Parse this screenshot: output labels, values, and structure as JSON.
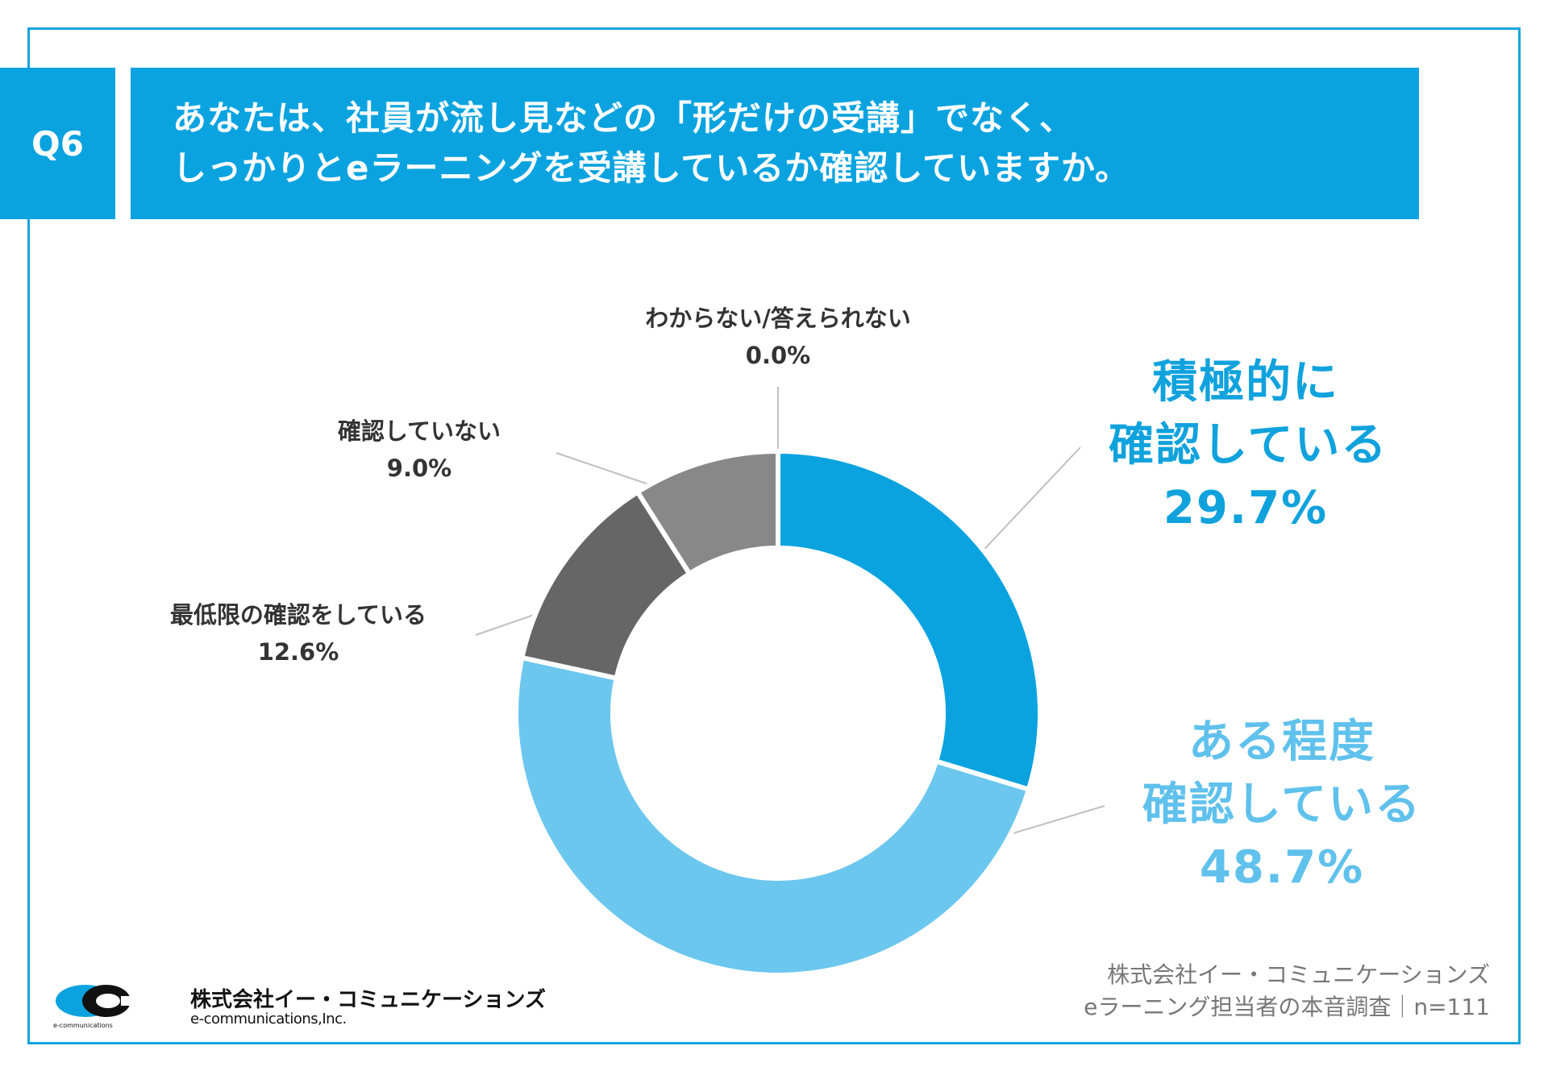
{
  "question": {
    "badge": "Q6",
    "line1": "あなたは、社員が流し見などの「形だけの受講」でなく、",
    "line2": "しっかりとeラーニングを受講しているか確認していますか。"
  },
  "chart_data": {
    "type": "pie",
    "donut": true,
    "start": "12 o'clock",
    "direction": "clockwise",
    "slices": [
      {
        "label_lines": [
          "積極的に",
          "確認している"
        ],
        "value": 29.7,
        "value_label": "29.7%",
        "color": "#0aa3e0"
      },
      {
        "label_lines": [
          "ある程度",
          "確認している"
        ],
        "value": 48.7,
        "value_label": "48.7%",
        "color": "#6cc7ee"
      },
      {
        "label_lines": [
          "最低限の確認をしている"
        ],
        "value": 12.6,
        "value_label": "12.6%",
        "color": "#666666"
      },
      {
        "label_lines": [
          "確認していない"
        ],
        "value": 9.0,
        "value_label": "9.0%",
        "color": "#888888"
      },
      {
        "label_lines": [
          "わからない/答えられない"
        ],
        "value": 0.0,
        "value_label": "0.0%",
        "color": "#bbbbbb"
      }
    ],
    "colors": {
      "leader_line": "#bfbfbf",
      "slice_gap": "#ffffff"
    }
  },
  "logo": {
    "jp": "株式会社イー・コミュニケーションズ",
    "en": "e-communications,Inc.",
    "tiny": "e-communications"
  },
  "source": {
    "line1": "株式会社イー・コミュニケーションズ",
    "line2": "eラーニング担当者の本音調査｜n=111"
  }
}
